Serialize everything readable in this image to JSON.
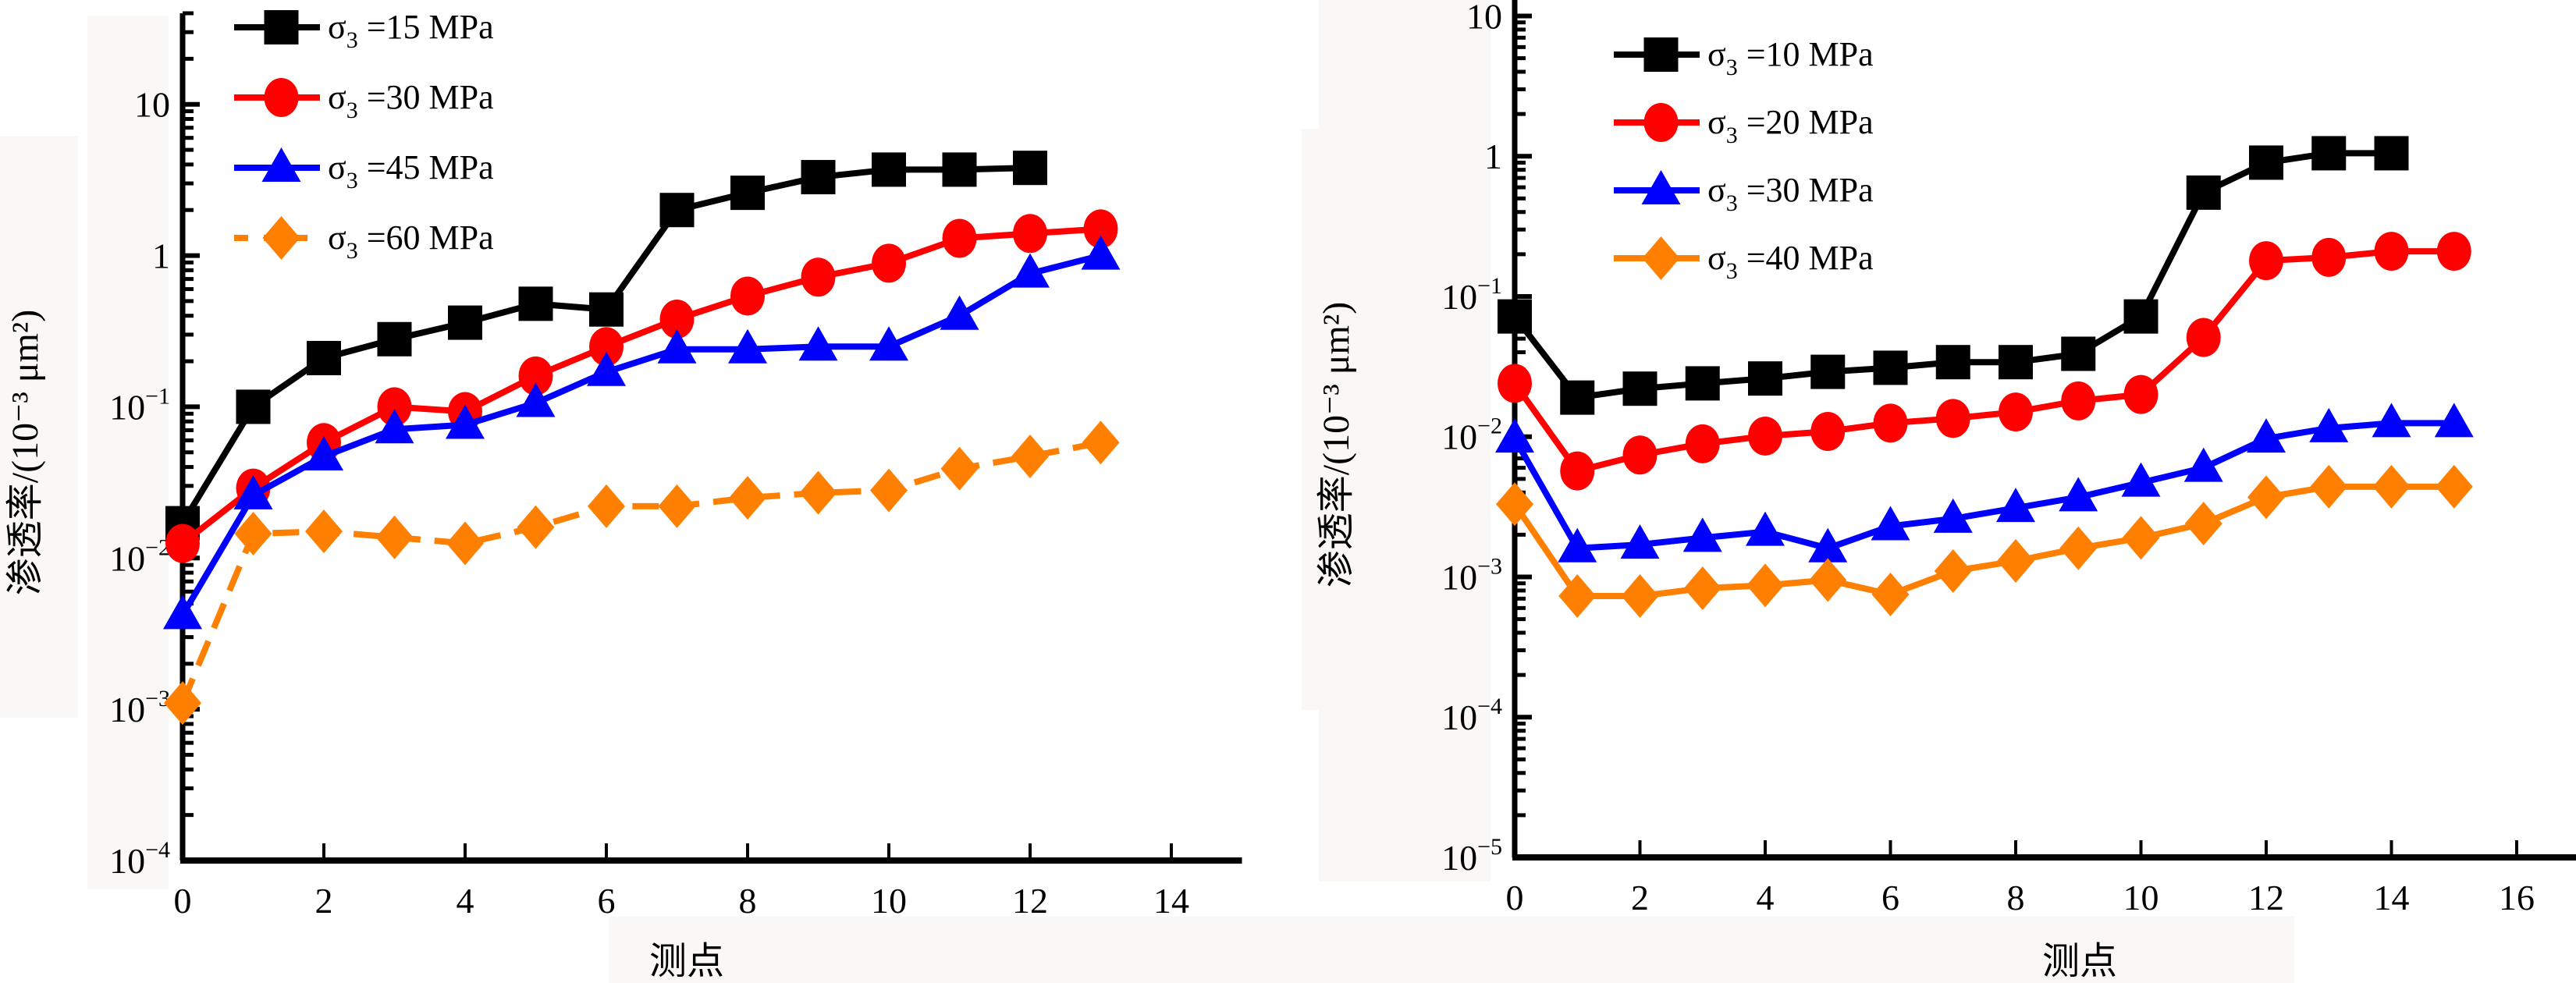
{
  "chart_data": [
    {
      "type": "line",
      "title": "",
      "xlabel": "测点",
      "ylabel": "渗透率/(10⁻³ μm²)",
      "yscale": "log",
      "xlim": [
        0,
        15
      ],
      "ylim": [
        0.0001,
        40
      ],
      "xticks": [
        "0",
        "2",
        "4",
        "6",
        "8",
        "10",
        "12",
        "14"
      ],
      "yticks": [
        {
          "base": "10",
          "exp": "-4"
        },
        {
          "base": "10",
          "exp": "-3"
        },
        {
          "base": "10",
          "exp": "-2"
        },
        {
          "base": "10",
          "exp": "-1"
        },
        {
          "base": "1",
          "exp": ""
        },
        {
          "base": "10",
          "exp": ""
        }
      ],
      "legend_position": "top-left",
      "series": [
        {
          "name": "σ3 =15 MPa",
          "label_prefix": "σ",
          "label_sub": "3",
          "label_rest": " =15 MPa",
          "color": "#000000",
          "marker": "square",
          "dash": false,
          "x": [
            0,
            1,
            2,
            3,
            4,
            5,
            6,
            7,
            8,
            9,
            10,
            11,
            12
          ],
          "values": [
            0.017,
            0.1,
            0.21,
            0.28,
            0.36,
            0.48,
            0.44,
            2.0,
            2.6,
            3.3,
            3.7,
            3.7,
            3.8
          ]
        },
        {
          "name": "σ3 =30 MPa",
          "label_prefix": "σ",
          "label_sub": "3",
          "label_rest": " =30 MPa",
          "color": "#ff0000",
          "marker": "circle",
          "dash": false,
          "x": [
            0,
            1,
            2,
            3,
            4,
            5,
            6,
            7,
            8,
            9,
            10,
            11,
            12,
            13
          ],
          "values": [
            0.0125,
            0.029,
            0.058,
            0.1,
            0.093,
            0.16,
            0.25,
            0.38,
            0.54,
            0.72,
            0.89,
            1.3,
            1.4,
            1.5
          ]
        },
        {
          "name": "σ3 =45 MPa",
          "label_prefix": "σ",
          "label_sub": "3",
          "label_rest": " =45 MPa",
          "color": "#0000ff",
          "marker": "triangle",
          "dash": false,
          "x": [
            0,
            1,
            2,
            3,
            4,
            5,
            6,
            7,
            8,
            9,
            10,
            11,
            12,
            13
          ],
          "values": [
            0.0042,
            0.026,
            0.047,
            0.071,
            0.076,
            0.106,
            0.17,
            0.24,
            0.24,
            0.25,
            0.25,
            0.4,
            0.76,
            1.0
          ]
        },
        {
          "name": "σ3 =60 MPa",
          "label_prefix": "σ",
          "label_sub": "3",
          "label_rest": " =60 MPa",
          "color": "#ff8000",
          "marker": "diamond",
          "dash": true,
          "x": [
            0,
            1,
            2,
            3,
            4,
            5,
            6,
            7,
            8,
            9,
            10,
            11,
            12,
            13
          ],
          "values": [
            0.0011,
            0.0145,
            0.015,
            0.0137,
            0.0125,
            0.016,
            0.022,
            0.022,
            0.025,
            0.027,
            0.028,
            0.039,
            0.047,
            0.058
          ]
        }
      ]
    },
    {
      "type": "line",
      "title": "",
      "xlabel": "测点",
      "ylabel": "渗透率/(10⁻³ μm²)",
      "yscale": "log",
      "xlim": [
        0,
        17
      ],
      "ylim": [
        1e-05,
        13
      ],
      "xticks": [
        "0",
        "2",
        "4",
        "6",
        "8",
        "10",
        "12",
        "14",
        "16"
      ],
      "yticks": [
        {
          "base": "10",
          "exp": "-5"
        },
        {
          "base": "10",
          "exp": "-4"
        },
        {
          "base": "10",
          "exp": "-3"
        },
        {
          "base": "10",
          "exp": "-2"
        },
        {
          "base": "10",
          "exp": "-1"
        },
        {
          "base": "1",
          "exp": ""
        },
        {
          "base": "10",
          "exp": ""
        }
      ],
      "legend_position": "top-left",
      "series": [
        {
          "name": "σ3 =10 MPa",
          "label_prefix": "σ",
          "label_sub": "3",
          "label_rest": " =10 MPa",
          "color": "#000000",
          "marker": "square",
          "dash": false,
          "x": [
            0,
            1,
            2,
            3,
            4,
            5,
            6,
            7,
            8,
            9,
            10,
            11,
            12,
            13,
            14
          ],
          "values": [
            0.072,
            0.019,
            0.022,
            0.024,
            0.026,
            0.029,
            0.031,
            0.034,
            0.034,
            0.039,
            0.072,
            0.55,
            0.9,
            1.05,
            1.05
          ]
        },
        {
          "name": "σ3 =20 MPa",
          "label_prefix": "σ",
          "label_sub": "3",
          "label_rest": " =20 MPa",
          "color": "#ff0000",
          "marker": "circle",
          "dash": false,
          "x": [
            0,
            1,
            2,
            3,
            4,
            5,
            6,
            7,
            8,
            9,
            10,
            11,
            12,
            13,
            14,
            15
          ],
          "values": [
            0.024,
            0.0057,
            0.0074,
            0.0089,
            0.0101,
            0.0109,
            0.0125,
            0.0135,
            0.015,
            0.018,
            0.02,
            0.051,
            0.18,
            0.19,
            0.21,
            0.21
          ]
        },
        {
          "name": "σ3 =30 MPa",
          "label_prefix": "σ",
          "label_sub": "3",
          "label_rest": " =30 MPa",
          "color": "#0000ff",
          "marker": "triangle",
          "dash": false,
          "x": [
            0,
            1,
            2,
            3,
            4,
            5,
            6,
            7,
            8,
            9,
            10,
            11,
            12,
            13,
            14,
            15
          ],
          "values": [
            0.0097,
            0.0016,
            0.0017,
            0.0019,
            0.0021,
            0.0016,
            0.0023,
            0.0026,
            0.0031,
            0.0037,
            0.0047,
            0.006,
            0.0097,
            0.0115,
            0.0125,
            0.0125
          ]
        },
        {
          "name": "σ3 =40 MPa",
          "label_prefix": "σ",
          "label_sub": "3",
          "label_rest": " =40 MPa",
          "color": "#ff8000",
          "marker": "diamond",
          "dash": false,
          "x": [
            0,
            1,
            2,
            3,
            4,
            5,
            6,
            7,
            8,
            9,
            10,
            11,
            12,
            13,
            14,
            15
          ],
          "values": [
            0.0033,
            0.00073,
            0.00073,
            0.00083,
            0.00087,
            0.00095,
            0.00075,
            0.0011,
            0.0013,
            0.0016,
            0.0019,
            0.0024,
            0.0037,
            0.0044,
            0.0044,
            0.0044
          ]
        }
      ]
    }
  ]
}
